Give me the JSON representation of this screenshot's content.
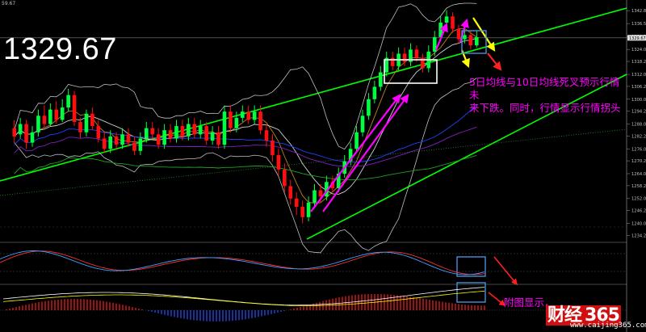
{
  "header": {
    "price_big": "1329.67",
    "corner_tag": "59.67"
  },
  "annotations": {
    "main_note": "5日均线与10日均线死叉预示行情未来下跌。同时，行情显示行情拐头",
    "main_note_line1": "5日均线与10日均线死叉预示行情未",
    "main_note_line2": "来下跌。同时，行情显示行情拐头",
    "sub_note": "附图显示，"
  },
  "watermark": {
    "logo_text": "财经",
    "logo_num": "365",
    "url": "www.caijing365.com"
  },
  "colors": {
    "bull": "#00ff40",
    "bear": "#ff1010",
    "channel": "#00ff00",
    "boll": "#c0c0c0",
    "ma_blue": "#2040ff",
    "ma_purple": "#8020c0",
    "ma_orange": "#c08020",
    "ma_green": "#20a020",
    "arrow_magenta": "#ff00ff",
    "arrow_yellow": "#ffff00",
    "arrow_red": "#ff2020",
    "box_white": "#ffffff",
    "box_blue": "#4a8fd8"
  },
  "chart_data": {
    "type": "candlestick",
    "y_axis_ticks": [
      "1342.80",
      "1336.55",
      "1330.30",
      "1324.05",
      "1318.25",
      "1312.00",
      "1306.20",
      "1300.00",
      "1294.20",
      "1288.00",
      "1282.20",
      "1276.00",
      "1270.20",
      "1264.00",
      "1258.20",
      "1252.00",
      "1246.20",
      "1240.00",
      "1234.20"
    ],
    "ylim": [
      1231.6,
      1345.6
    ],
    "current_price": 1329.67,
    "candles": [
      [
        1286,
        1282,
        1290,
        1279
      ],
      [
        1283,
        1288,
        1291,
        1281
      ],
      [
        1288,
        1279,
        1290,
        1276
      ],
      [
        1279,
        1284,
        1287,
        1277
      ],
      [
        1284,
        1292,
        1295,
        1282
      ],
      [
        1292,
        1288,
        1297,
        1286
      ],
      [
        1288,
        1295,
        1298,
        1287
      ],
      [
        1295,
        1290,
        1299,
        1288
      ],
      [
        1290,
        1296,
        1300,
        1289
      ],
      [
        1296,
        1302,
        1305,
        1294
      ],
      [
        1302,
        1289,
        1304,
        1287
      ],
      [
        1289,
        1284,
        1291,
        1281
      ],
      [
        1284,
        1293,
        1295,
        1282
      ],
      [
        1293,
        1287,
        1296,
        1285
      ],
      [
        1287,
        1281,
        1290,
        1279
      ],
      [
        1281,
        1276,
        1284,
        1274
      ],
      [
        1276,
        1282,
        1285,
        1274
      ],
      [
        1282,
        1278,
        1284,
        1276
      ],
      [
        1278,
        1283,
        1286,
        1276
      ],
      [
        1283,
        1279,
        1286,
        1277
      ],
      [
        1279,
        1275,
        1282,
        1273
      ],
      [
        1275,
        1281,
        1284,
        1273
      ],
      [
        1281,
        1286,
        1289,
        1279
      ],
      [
        1286,
        1283,
        1289,
        1281
      ],
      [
        1283,
        1278,
        1286,
        1276
      ],
      [
        1278,
        1285,
        1288,
        1276
      ],
      [
        1285,
        1281,
        1288,
        1279
      ],
      [
        1281,
        1287,
        1290,
        1279
      ],
      [
        1287,
        1282,
        1290,
        1280
      ],
      [
        1282,
        1288,
        1291,
        1280
      ],
      [
        1288,
        1283,
        1291,
        1281
      ],
      [
        1283,
        1287,
        1290,
        1281
      ],
      [
        1287,
        1280,
        1289,
        1278
      ],
      [
        1280,
        1284,
        1287,
        1278
      ],
      [
        1284,
        1278,
        1287,
        1276
      ],
      [
        1278,
        1294,
        1297,
        1276
      ],
      [
        1294,
        1286,
        1297,
        1284
      ],
      [
        1286,
        1291,
        1294,
        1284
      ],
      [
        1291,
        1294,
        1297,
        1289
      ],
      [
        1294,
        1290,
        1297,
        1288
      ],
      [
        1290,
        1294,
        1297,
        1288
      ],
      [
        1294,
        1285,
        1297,
        1283
      ],
      [
        1285,
        1280,
        1288,
        1277
      ],
      [
        1280,
        1273,
        1283,
        1270
      ],
      [
        1273,
        1266,
        1276,
        1263
      ],
      [
        1266,
        1258,
        1269,
        1255
      ],
      [
        1258,
        1252,
        1261,
        1249
      ],
      [
        1252,
        1248,
        1255,
        1244
      ],
      [
        1248,
        1243,
        1251,
        1240
      ],
      [
        1243,
        1250,
        1253,
        1241
      ],
      [
        1250,
        1256,
        1259,
        1248
      ],
      [
        1256,
        1253,
        1259,
        1250
      ],
      [
        1253,
        1260,
        1263,
        1251
      ],
      [
        1260,
        1257,
        1263,
        1255
      ],
      [
        1257,
        1264,
        1267,
        1255
      ],
      [
        1264,
        1270,
        1273,
        1262
      ],
      [
        1270,
        1276,
        1279,
        1268
      ],
      [
        1276,
        1284,
        1287,
        1274
      ],
      [
        1284,
        1292,
        1295,
        1282
      ],
      [
        1292,
        1300,
        1303,
        1290
      ],
      [
        1300,
        1306,
        1309,
        1298
      ],
      [
        1306,
        1313,
        1316,
        1304
      ],
      [
        1313,
        1320,
        1323,
        1311
      ],
      [
        1320,
        1316,
        1323,
        1314
      ],
      [
        1316,
        1322,
        1325,
        1314
      ],
      [
        1322,
        1318,
        1325,
        1316
      ],
      [
        1318,
        1324,
        1327,
        1316
      ],
      [
        1324,
        1320,
        1326,
        1318
      ],
      [
        1320,
        1315,
        1322,
        1313
      ],
      [
        1315,
        1323,
        1326,
        1313
      ],
      [
        1323,
        1330,
        1333,
        1321
      ],
      [
        1330,
        1337,
        1340,
        1328
      ],
      [
        1337,
        1340,
        1343,
        1335
      ],
      [
        1340,
        1334,
        1342,
        1332
      ],
      [
        1334,
        1329,
        1336,
        1327
      ],
      [
        1329,
        1331,
        1334,
        1327
      ],
      [
        1331,
        1326,
        1333,
        1324
      ],
      [
        1326,
        1330,
        1333,
        1325
      ]
    ]
  }
}
